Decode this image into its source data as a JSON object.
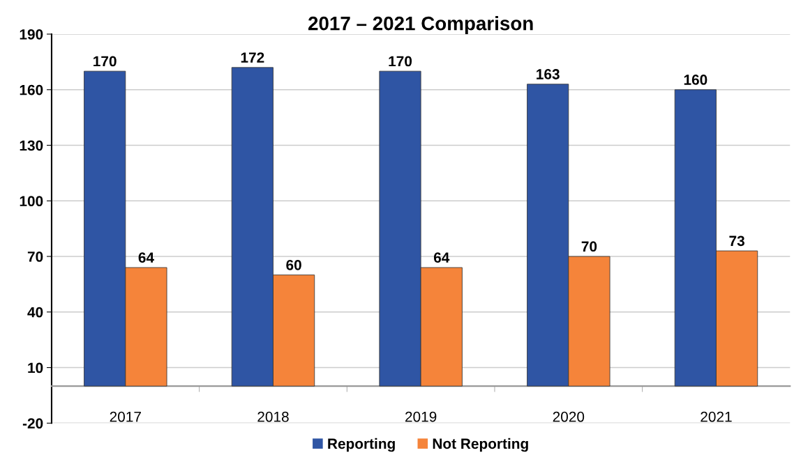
{
  "chart_data": {
    "type": "bar",
    "title": "2017 – 2021 Comparison",
    "categories": [
      "2017",
      "2018",
      "2019",
      "2020",
      "2021"
    ],
    "series": [
      {
        "name": "Reporting",
        "color": "#2f55a4",
        "values": [
          170,
          172,
          170,
          163,
          160
        ]
      },
      {
        "name": "Not Reporting",
        "color": "#f5843a",
        "values": [
          64,
          60,
          64,
          70,
          73
        ]
      }
    ],
    "ylim": [
      -20,
      190
    ],
    "yticks": [
      -20,
      10,
      40,
      70,
      100,
      130,
      160,
      190
    ],
    "grid": "y",
    "legend": "bottom",
    "data_labels": true
  }
}
